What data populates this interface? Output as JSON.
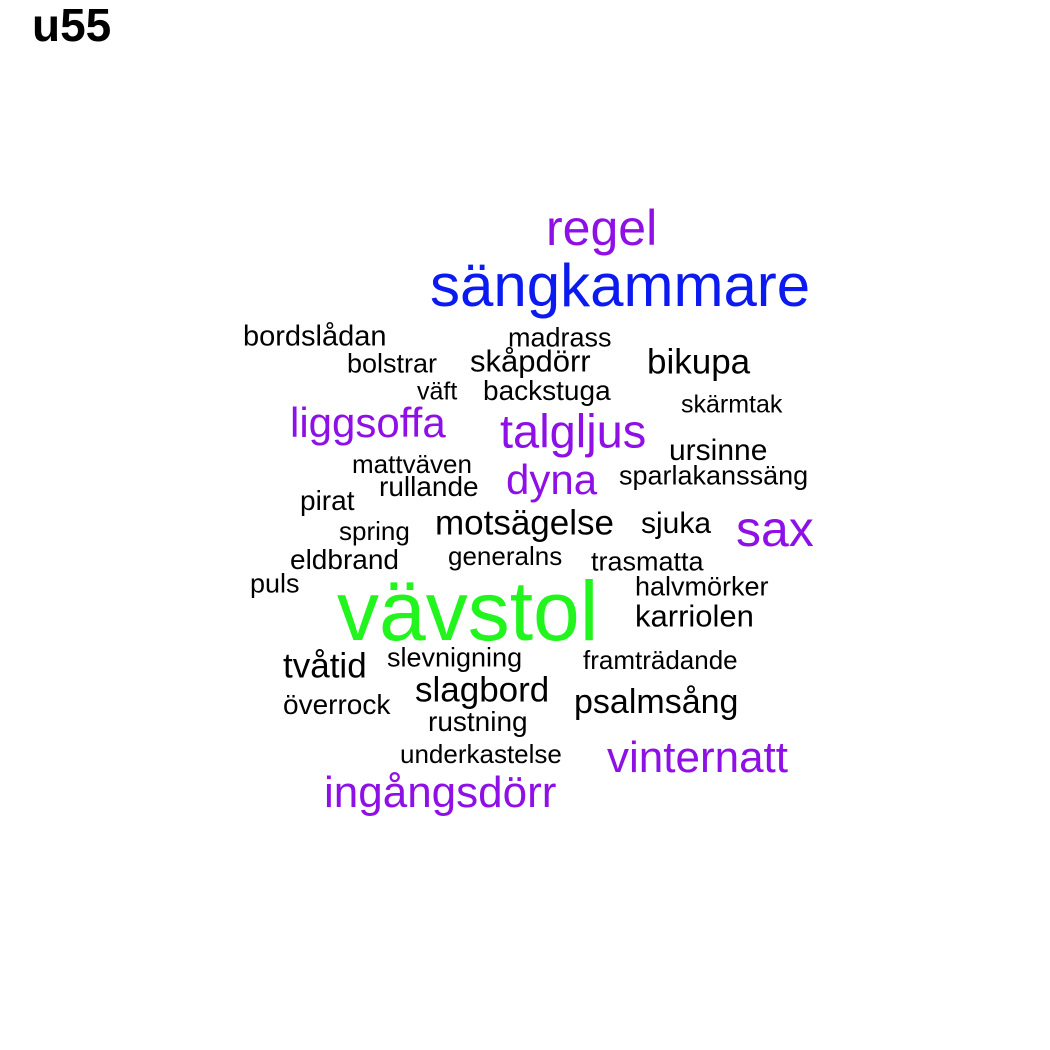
{
  "panel_label": "u55",
  "colors": {
    "black": "#000000",
    "purple": "#8f10e6",
    "blue": "#0a1af0",
    "green": "#22f51e"
  },
  "words": [
    {
      "text": "regel",
      "color": "purple",
      "size": "large"
    },
    {
      "text": "sängkammare",
      "color": "blue",
      "size": "xlarge"
    },
    {
      "text": "bordslådan",
      "color": "black",
      "size": "small"
    },
    {
      "text": "madrass",
      "color": "black",
      "size": "small"
    },
    {
      "text": "bolstrar",
      "color": "black",
      "size": "small"
    },
    {
      "text": "skåpdörr",
      "color": "black",
      "size": "small"
    },
    {
      "text": "bikupa",
      "color": "black",
      "size": "medium"
    },
    {
      "text": "väft",
      "color": "black",
      "size": "small"
    },
    {
      "text": "backstuga",
      "color": "black",
      "size": "small"
    },
    {
      "text": "skärmtak",
      "color": "black",
      "size": "small"
    },
    {
      "text": "liggsoffa",
      "color": "purple",
      "size": "medium-large"
    },
    {
      "text": "talgljus",
      "color": "purple",
      "size": "medium-large"
    },
    {
      "text": "ursinne",
      "color": "black",
      "size": "small"
    },
    {
      "text": "mattväven",
      "color": "black",
      "size": "small"
    },
    {
      "text": "dyna",
      "color": "purple",
      "size": "medium-large"
    },
    {
      "text": "sparlakanssäng",
      "color": "black",
      "size": "small"
    },
    {
      "text": "rullande",
      "color": "black",
      "size": "small"
    },
    {
      "text": "pirat",
      "color": "black",
      "size": "small"
    },
    {
      "text": "sax",
      "color": "purple",
      "size": "large"
    },
    {
      "text": "motsägelse",
      "color": "black",
      "size": "medium"
    },
    {
      "text": "sjuka",
      "color": "black",
      "size": "small"
    },
    {
      "text": "spring",
      "color": "black",
      "size": "small"
    },
    {
      "text": "generalns",
      "color": "black",
      "size": "small"
    },
    {
      "text": "eldbrand",
      "color": "black",
      "size": "small"
    },
    {
      "text": "trasmatta",
      "color": "black",
      "size": "small"
    },
    {
      "text": "puls",
      "color": "black",
      "size": "small"
    },
    {
      "text": "halvmörker",
      "color": "black",
      "size": "small"
    },
    {
      "text": "vävstol",
      "color": "green",
      "size": "xxlarge"
    },
    {
      "text": "karriolen",
      "color": "black",
      "size": "small"
    },
    {
      "text": "tvåtid",
      "color": "black",
      "size": "medium"
    },
    {
      "text": "slevnigning",
      "color": "black",
      "size": "small"
    },
    {
      "text": "framträdande",
      "color": "black",
      "size": "small"
    },
    {
      "text": "slagbord",
      "color": "black",
      "size": "medium"
    },
    {
      "text": "psalmsång",
      "color": "black",
      "size": "medium"
    },
    {
      "text": "överrock",
      "color": "black",
      "size": "small"
    },
    {
      "text": "rustning",
      "color": "black",
      "size": "small"
    },
    {
      "text": "underkastelse",
      "color": "black",
      "size": "small"
    },
    {
      "text": "vinternatt",
      "color": "purple",
      "size": "medium-large"
    },
    {
      "text": "ingångsdörr",
      "color": "purple",
      "size": "medium-large"
    }
  ]
}
